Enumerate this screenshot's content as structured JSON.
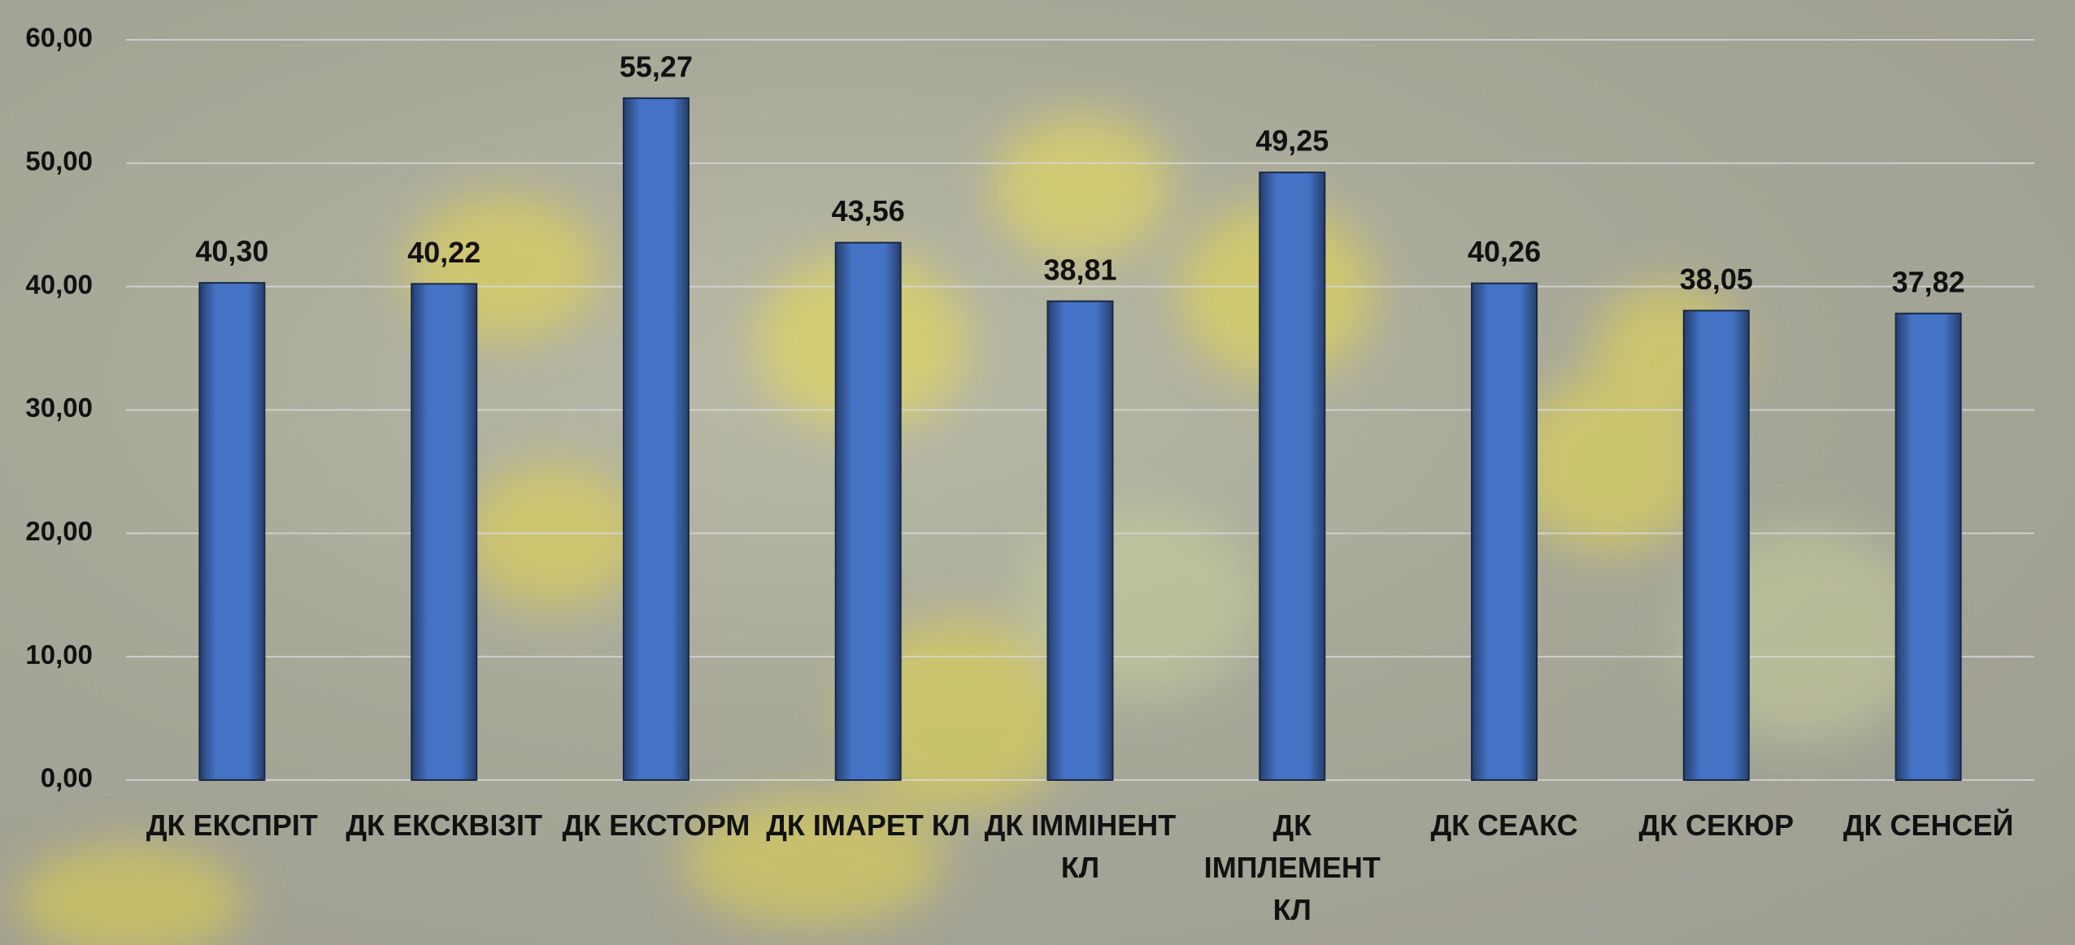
{
  "chart_data": {
    "type": "bar",
    "categories": [
      "ДК ЕКСПРІТ",
      "ДК ЕКСКВІЗІТ",
      "ДК ЕКСТОРМ",
      "ДК ІМАРЕТ КЛ",
      "ДК ІММІНЕНТ КЛ",
      "ДК ІМПЛЕМЕНТ КЛ",
      "ДК СЕАКС",
      "ДК СЕКЮР",
      "ДК СЕНСЕЙ"
    ],
    "values": [
      40.3,
      40.22,
      55.27,
      43.56,
      38.81,
      49.25,
      40.26,
      38.05,
      37.82
    ],
    "value_labels": [
      "40,30",
      "40,22",
      "55,27",
      "43,56",
      "38,81",
      "49,25",
      "40,26",
      "38,05",
      "37,82"
    ],
    "color": "#4472c4",
    "ylim": [
      0,
      60
    ],
    "yticks": [
      {
        "value": 0,
        "label": "0,00"
      },
      {
        "value": 10,
        "label": "10,00"
      },
      {
        "value": 20,
        "label": "20,00"
      },
      {
        "value": 30,
        "label": "30,00"
      },
      {
        "value": 40,
        "label": "40,00"
      },
      {
        "value": 50,
        "label": "50,00"
      },
      {
        "value": 60,
        "label": "60,00"
      }
    ],
    "grid": true
  }
}
